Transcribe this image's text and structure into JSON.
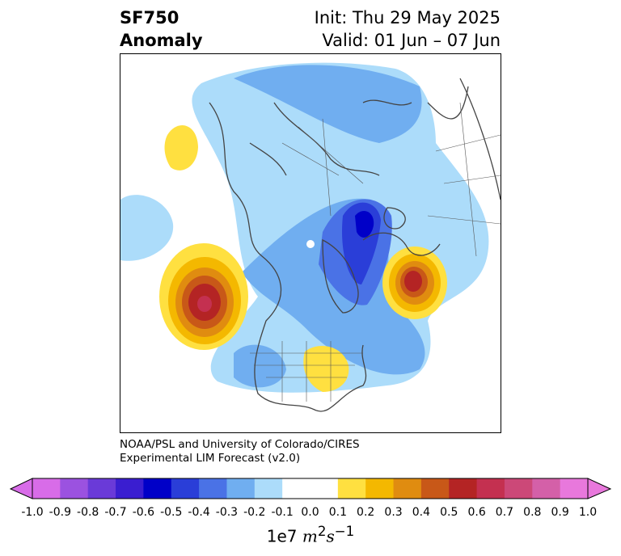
{
  "title": {
    "left_line1": "SF750",
    "left_line2": "Anomaly",
    "right_line1": "Init: Thu 29 May 2025",
    "right_line2": "Valid: 01 Jun – 07 Jun"
  },
  "credits": {
    "line1": "NOAA/PSL and University of Colorado/CIRES",
    "line2": "Experimental LIM Forecast (v2.0)"
  },
  "colorbar": {
    "ticks": [
      "-1.0",
      "-0.9",
      "-0.8",
      "-0.7",
      "-0.6",
      "-0.5",
      "-0.4",
      "-0.3",
      "-0.2",
      "-0.1",
      "0.0",
      "0.1",
      "0.2",
      "0.3",
      "0.4",
      "0.5",
      "0.6",
      "0.7",
      "0.8",
      "0.9",
      "1.0"
    ],
    "colors": [
      "#d86ce8",
      "#9b52e0",
      "#6a3ad8",
      "#3a1ed0",
      "#0000c8",
      "#2a3ed8",
      "#4a72e6",
      "#70aef0",
      "#acdcfa",
      "#ffffff",
      "#ffffff",
      "#ffe040",
      "#f4b800",
      "#e08c10",
      "#c85818",
      "#b42424",
      "#c43050",
      "#cc4878",
      "#d460a8",
      "#e878dc"
    ],
    "units_prefix": "1e7",
    "units_main": "m",
    "units_sup1": "2",
    "units_s": "s",
    "units_sup2": "−1"
  }
}
